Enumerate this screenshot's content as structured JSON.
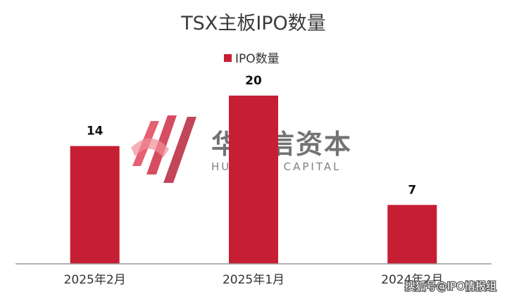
{
  "chart_data": {
    "type": "bar",
    "title": "TSX主板IPO数量",
    "categories": [
      "2025年2月",
      "2025年1月",
      "2024年2月"
    ],
    "series": [
      {
        "name": "IPO数量",
        "values": [
          14,
          20,
          7
        ],
        "color": "#c61e32"
      }
    ],
    "data_labels": [
      "14",
      "20",
      "7"
    ],
    "ylim": [
      0,
      23
    ],
    "grid": false,
    "y_axis_visible": false,
    "legend": {
      "position": "top-center"
    }
  },
  "watermark": {
    "name_cn": "华谊信资本",
    "name_en": "HUAYIXIN CAPITAL",
    "logo": "huayixin-capital-logo"
  },
  "source_text": "搜狐号@IPO情报组"
}
